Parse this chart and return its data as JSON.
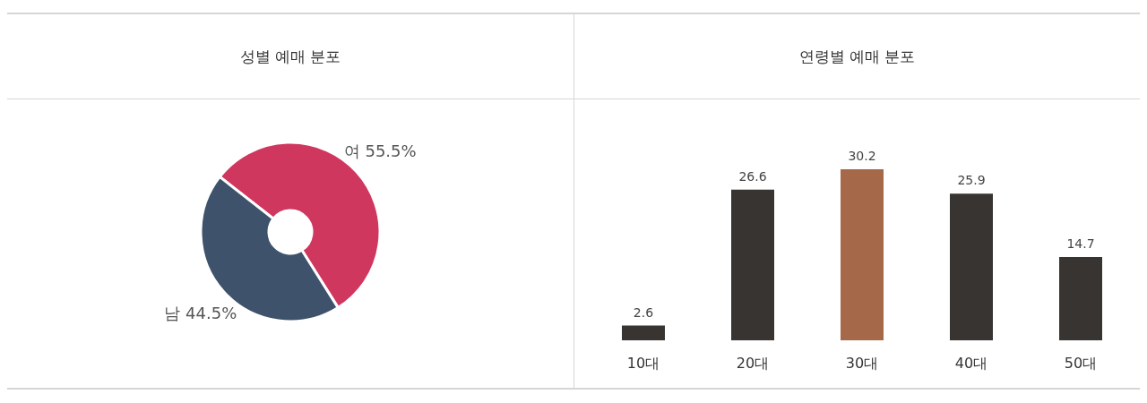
{
  "chart_data": [
    {
      "type": "donut",
      "title": "성별 예매 분포",
      "categories": [
        "여",
        "남"
      ],
      "values": [
        55.5,
        44.5
      ],
      "colors": [
        "#d0375f",
        "#3e526b"
      ],
      "value_labels": [
        "55.5%",
        "44.5%"
      ]
    },
    {
      "type": "bar",
      "title": "연령별 예매 분포",
      "categories": [
        "10대",
        "20대",
        "30대",
        "40대",
        "50대"
      ],
      "values": [
        2.6,
        26.6,
        30.2,
        25.9,
        14.7
      ],
      "colors": [
        "#383431",
        "#383431",
        "#a5694a",
        "#383431",
        "#383431"
      ],
      "data_labels": true
    }
  ]
}
